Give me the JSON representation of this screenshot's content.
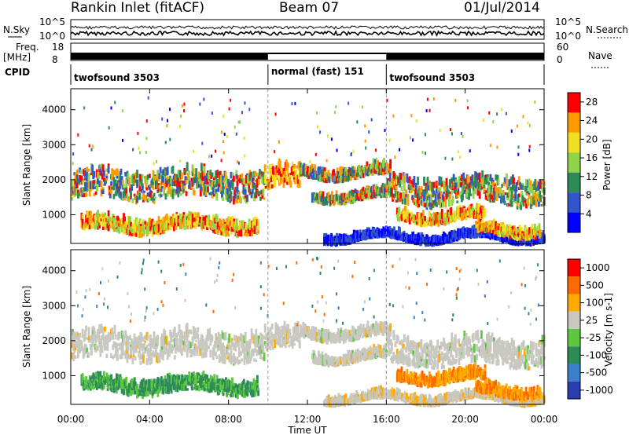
{
  "header": {
    "station": "Rankin Inlet (fitACF)",
    "beam": "Beam 07",
    "date": "01/Jul/2014"
  },
  "strips": {
    "nsky_label": "N.Sky",
    "nsearch_label": "N.Search",
    "left_ticks": [
      "10^5",
      "10^0"
    ],
    "right_ticks": [
      "10^5",
      "10^0"
    ],
    "freq_label": "Freq.",
    "freq_unit": "[MHz]",
    "freq_ticks": [
      "18",
      "8"
    ],
    "nave_label": "Nave",
    "nave_ticks": [
      "60",
      "0"
    ],
    "cpid_label": "CPID",
    "cpid_segments": [
      {
        "label": "twofsound 3503",
        "start": 0,
        "end": 10
      },
      {
        "label": "normal (fast) 151",
        "start": 10,
        "end": 16
      },
      {
        "label": "twofsound 3503",
        "start": 16,
        "end": 24
      }
    ]
  },
  "chart_data": [
    {
      "type": "heatmap",
      "title": "",
      "xlabel": "Time UT",
      "ylabel": "Slant Range [km]",
      "x_ticks": [
        "00:00",
        "04:00",
        "08:00",
        "12:00",
        "16:00",
        "20:00",
        "00:00"
      ],
      "xlim": [
        0,
        24
      ],
      "ylim": [
        180,
        4600
      ],
      "y_ticks": [
        "1000",
        "2000",
        "3000",
        "4000"
      ],
      "colorbar": {
        "label": "Power [dB]",
        "ticks": [
          "4",
          "8",
          "12",
          "16",
          "20",
          "24",
          "28"
        ],
        "range": [
          0,
          30
        ],
        "colors": [
          "#0000ff",
          "#3355cc",
          "#2e8b57",
          "#8fd44a",
          "#f0e020",
          "#ff9900",
          "#ff0000"
        ]
      }
    },
    {
      "type": "heatmap",
      "title": "",
      "xlabel": "Time UT",
      "ylabel": "Slant Range [km]",
      "x_ticks": [
        "00:00",
        "04:00",
        "08:00",
        "12:00",
        "16:00",
        "20:00",
        "00:00"
      ],
      "xlim": [
        0,
        24
      ],
      "ylim": [
        180,
        4600
      ],
      "y_ticks": [
        "1000",
        "2000",
        "3000",
        "4000"
      ],
      "colorbar": {
        "label": "Velocity [m s-1]",
        "ticks": [
          "1000",
          "500",
          "100",
          "25",
          "-25",
          "-100",
          "-500",
          "-1000"
        ],
        "colors": [
          "#2a3db0",
          "#3a80c8",
          "#2e8b57",
          "#5cc840",
          "#c8c8c0",
          "#ffaa00",
          "#ff6a00",
          "#ff0000"
        ]
      }
    }
  ],
  "bands": [
    {
      "t0": 0.0,
      "t1": 9.8,
      "r0": 1400,
      "r1": 2350,
      "kind": "mid"
    },
    {
      "t0": 9.8,
      "t1": 11.6,
      "r0": 1650,
      "r1": 2400,
      "kind": "hot"
    },
    {
      "t0": 11.6,
      "t1": 16.2,
      "r0": 2000,
      "r1": 2300,
      "kind": "mid"
    },
    {
      "t0": 12.2,
      "t1": 16.0,
      "r0": 1350,
      "r1": 1600,
      "kind": "mid"
    },
    {
      "t0": 16.0,
      "t1": 24.0,
      "r0": 1250,
      "r1": 2150,
      "kind": "mid"
    },
    {
      "t0": 16.5,
      "t1": 21.0,
      "r0": 750,
      "r1": 1050,
      "kind": "low"
    },
    {
      "t0": 0.5,
      "t1": 9.5,
      "r0": 450,
      "r1": 900,
      "kind": "low"
    },
    {
      "t0": 12.8,
      "t1": 24.0,
      "r0": 200,
      "r1": 380,
      "kind": "edge"
    },
    {
      "t0": 20.5,
      "t1": 23.8,
      "r0": 350,
      "r1": 650,
      "kind": "low"
    }
  ]
}
